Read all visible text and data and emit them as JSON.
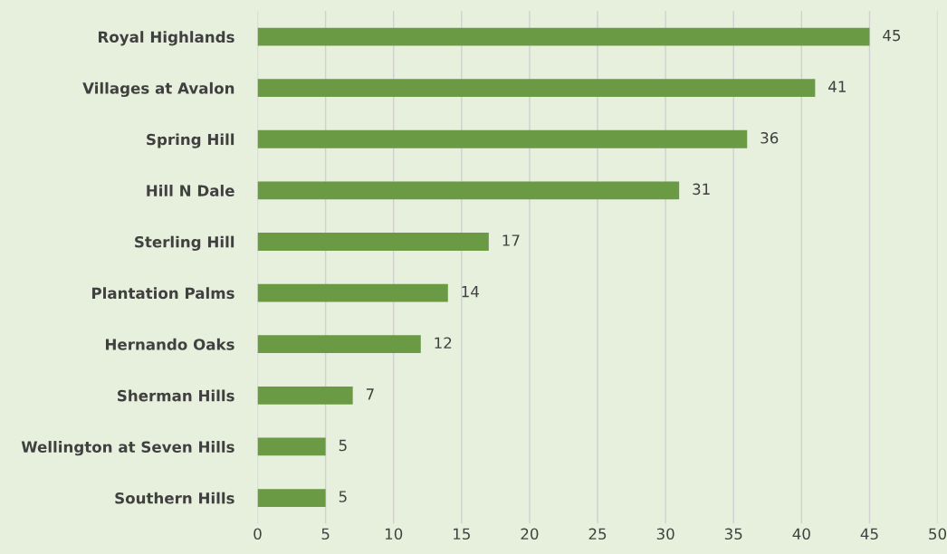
{
  "chart_data": {
    "type": "bar",
    "orientation": "horizontal",
    "categories": [
      "Royal Highlands",
      "Villages at Avalon",
      "Spring Hill",
      "Hill N Dale",
      "Sterling Hill",
      "Plantation Palms",
      "Hernando Oaks",
      "Sherman Hills",
      "Wellington at Seven Hills",
      "Southern Hills"
    ],
    "values": [
      45,
      41,
      36,
      31,
      17,
      14,
      12,
      7,
      5,
      5
    ],
    "color": "#6a9a44",
    "xlim": [
      0,
      50
    ],
    "xticks": [
      0,
      5,
      10,
      15,
      20,
      25,
      30,
      35,
      40,
      45,
      50
    ],
    "grid": "x",
    "data_labels": true
  }
}
